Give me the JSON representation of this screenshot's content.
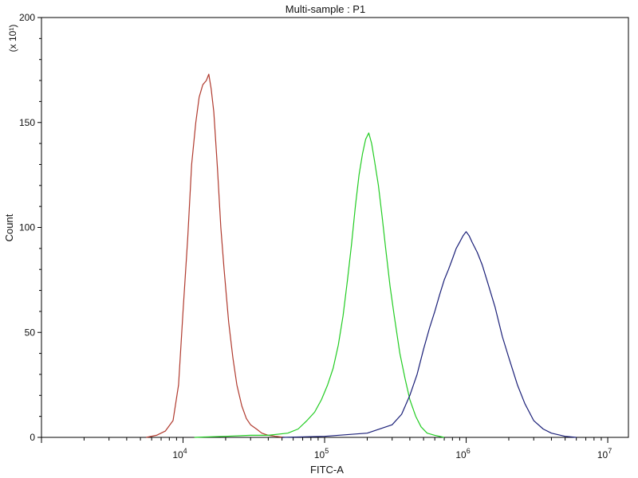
{
  "chart_data": {
    "type": "line",
    "title": "Multi-sample : P1",
    "xlabel": "FITC-A",
    "ylabel": "Count",
    "y_multiplier": "(x 10¹)",
    "xscale": "log",
    "xlim": [
      1000,
      14000000
    ],
    "ylim": [
      0,
      200
    ],
    "x_ticks": [
      {
        "value": 10000,
        "base": "10",
        "exp": "4"
      },
      {
        "value": 100000,
        "base": "10",
        "exp": "5"
      },
      {
        "value": 1000000,
        "base": "10",
        "exp": "6"
      },
      {
        "value": 10000000,
        "base": "10",
        "exp": "7"
      }
    ],
    "y_ticks": [
      0,
      50,
      100,
      150,
      200
    ],
    "grid": false,
    "colors": {
      "red": "#b03a2e",
      "green": "#22cc22",
      "blue": "#1a1f78"
    },
    "series": [
      {
        "color": "#b03a2e",
        "x": [
          5500,
          6500,
          7500,
          8500,
          9300,
          10000,
          10800,
          11500,
          12300,
          13000,
          13800,
          14600,
          15200,
          15800,
          16500,
          17500,
          18500,
          19500,
          21000,
          22500,
          24000,
          26000,
          28000,
          30000,
          33000,
          36000,
          40000,
          45000,
          52000
        ],
        "y": [
          0,
          1,
          3,
          8,
          25,
          60,
          95,
          130,
          150,
          162,
          168,
          170,
          173,
          166,
          155,
          128,
          100,
          80,
          55,
          38,
          25,
          15,
          9,
          6,
          4,
          2,
          1,
          0.5,
          0
        ]
      },
      {
        "color": "#22cc22",
        "x": [
          12000,
          20000,
          30000,
          40000,
          55000,
          65000,
          75000,
          85000,
          95000,
          105000,
          115000,
          125000,
          135000,
          145000,
          155000,
          165000,
          175000,
          185000,
          195000,
          205000,
          215000,
          225000,
          240000,
          255000,
          270000,
          290000,
          310000,
          340000,
          370000,
          400000,
          440000,
          480000,
          530000,
          600000,
          700000
        ],
        "y": [
          0,
          0.5,
          1,
          1,
          2,
          4,
          8,
          12,
          18,
          25,
          33,
          44,
          58,
          75,
          92,
          110,
          125,
          135,
          142,
          145,
          140,
          132,
          120,
          105,
          90,
          72,
          58,
          40,
          28,
          18,
          10,
          5,
          2,
          1,
          0
        ]
      },
      {
        "color": "#1a1f78",
        "x": [
          50000,
          100000,
          200000,
          300000,
          350000,
          400000,
          450000,
          500000,
          550000,
          600000,
          650000,
          700000,
          750000,
          800000,
          850000,
          900000,
          950000,
          1000000,
          1050000,
          1100000,
          1200000,
          1300000,
          1400000,
          1600000,
          1800000,
          2000000,
          2300000,
          2600000,
          3000000,
          3500000,
          4000000,
          5000000,
          6000000
        ],
        "y": [
          0,
          0.5,
          2,
          6,
          11,
          20,
          30,
          42,
          52,
          60,
          68,
          75,
          80,
          85,
          90,
          93,
          96,
          98,
          96,
          93,
          88,
          82,
          75,
          62,
          48,
          38,
          25,
          16,
          8,
          4,
          2,
          0.5,
          0
        ]
      }
    ]
  }
}
